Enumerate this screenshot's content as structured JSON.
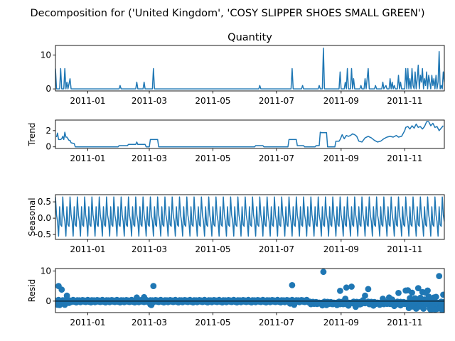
{
  "figure": {
    "suptitle": "Decomposition for ('United Kingdom', 'COSY SLIPPER SHOES SMALL GREEN')"
  },
  "chart_data": [
    {
      "type": "line",
      "title": "Quantity",
      "ylabel": "",
      "color": "#1f77b4",
      "xlim": [
        "2010-12-01",
        "2011-12-09"
      ],
      "ylim": [
        -0.6,
        12.8
      ],
      "yticks": [
        0,
        10
      ],
      "xticks": [
        "2011-01",
        "2011-03",
        "2011-05",
        "2011-07",
        "2011-09",
        "2011-11"
      ],
      "points": [
        [
          "2010-12-01",
          6
        ],
        [
          "2010-12-02",
          0
        ],
        [
          "2010-12-05",
          0
        ],
        [
          "2010-12-06",
          6
        ],
        [
          "2010-12-07",
          0
        ],
        [
          "2010-12-09",
          0
        ],
        [
          "2010-12-10",
          6
        ],
        [
          "2010-12-11",
          0
        ],
        [
          "2010-12-12",
          2
        ],
        [
          "2010-12-13",
          0
        ],
        [
          "2010-12-15",
          3
        ],
        [
          "2010-12-16",
          0
        ],
        [
          "2011-01-31",
          0
        ],
        [
          "2011-02-01",
          1
        ],
        [
          "2011-02-02",
          0
        ],
        [
          "2011-02-16",
          0
        ],
        [
          "2011-02-17",
          2
        ],
        [
          "2011-02-18",
          0
        ],
        [
          "2011-02-23",
          0
        ],
        [
          "2011-02-24",
          2
        ],
        [
          "2011-02-25",
          0
        ],
        [
          "2011-03-04",
          0
        ],
        [
          "2011-03-05",
          6
        ],
        [
          "2011-03-06",
          0
        ],
        [
          "2011-06-14",
          0
        ],
        [
          "2011-06-15",
          1
        ],
        [
          "2011-06-16",
          0
        ],
        [
          "2011-07-15",
          0
        ],
        [
          "2011-07-16",
          6
        ],
        [
          "2011-07-17",
          0
        ],
        [
          "2011-07-25",
          0
        ],
        [
          "2011-07-26",
          1
        ],
        [
          "2011-07-27",
          0
        ],
        [
          "2011-08-10",
          0
        ],
        [
          "2011-08-11",
          1
        ],
        [
          "2011-08-12",
          0
        ],
        [
          "2011-08-14",
          0
        ],
        [
          "2011-08-15",
          12
        ],
        [
          "2011-08-16",
          0
        ],
        [
          "2011-08-30",
          0
        ],
        [
          "2011-08-31",
          5
        ],
        [
          "2011-09-01",
          0
        ],
        [
          "2011-09-04",
          0
        ],
        [
          "2011-09-05",
          2
        ],
        [
          "2011-09-06",
          0
        ],
        [
          "2011-09-07",
          6
        ],
        [
          "2011-09-08",
          0
        ],
        [
          "2011-09-10",
          0
        ],
        [
          "2011-09-11",
          6
        ],
        [
          "2011-09-12",
          0
        ],
        [
          "2011-09-13",
          3
        ],
        [
          "2011-09-14",
          0
        ],
        [
          "2011-09-19",
          0
        ],
        [
          "2011-09-20",
          1
        ],
        [
          "2011-09-21",
          0
        ],
        [
          "2011-09-23",
          0
        ],
        [
          "2011-09-24",
          3
        ],
        [
          "2011-09-25",
          0
        ],
        [
          "2011-09-27",
          6
        ],
        [
          "2011-09-28",
          0
        ],
        [
          "2011-10-03",
          0
        ],
        [
          "2011-10-04",
          1
        ],
        [
          "2011-10-05",
          0
        ],
        [
          "2011-10-10",
          0
        ],
        [
          "2011-10-11",
          2
        ],
        [
          "2011-10-12",
          0
        ],
        [
          "2011-10-14",
          1
        ],
        [
          "2011-10-15",
          0
        ],
        [
          "2011-10-17",
          0
        ],
        [
          "2011-10-18",
          3
        ],
        [
          "2011-10-19",
          0
        ],
        [
          "2011-10-20",
          2
        ],
        [
          "2011-10-21",
          0
        ],
        [
          "2011-10-22",
          1
        ],
        [
          "2011-10-23",
          0
        ],
        [
          "2011-10-25",
          0
        ],
        [
          "2011-10-26",
          4
        ],
        [
          "2011-10-27",
          0
        ],
        [
          "2011-10-28",
          2
        ],
        [
          "2011-10-29",
          0
        ],
        [
          "2011-11-01",
          0
        ],
        [
          "2011-11-02",
          6
        ],
        [
          "2011-11-03",
          0
        ],
        [
          "2011-11-04",
          6
        ],
        [
          "2011-11-05",
          0
        ],
        [
          "2011-11-06",
          3
        ],
        [
          "2011-11-07",
          0
        ],
        [
          "2011-11-08",
          6
        ],
        [
          "2011-11-09",
          1
        ],
        [
          "2011-11-10",
          0
        ],
        [
          "2011-11-11",
          5
        ],
        [
          "2011-11-12",
          0
        ],
        [
          "2011-11-13",
          3
        ],
        [
          "2011-11-14",
          7
        ],
        [
          "2011-11-15",
          0
        ],
        [
          "2011-11-16",
          4
        ],
        [
          "2011-11-17",
          2
        ],
        [
          "2011-11-18",
          6
        ],
        [
          "2011-11-19",
          0
        ],
        [
          "2011-11-20",
          3
        ],
        [
          "2011-11-21",
          1
        ],
        [
          "2011-11-22",
          5
        ],
        [
          "2011-11-23",
          0
        ],
        [
          "2011-11-24",
          4
        ],
        [
          "2011-11-25",
          2
        ],
        [
          "2011-11-26",
          0
        ],
        [
          "2011-11-27",
          4
        ],
        [
          "2011-11-28",
          1
        ],
        [
          "2011-11-29",
          3
        ],
        [
          "2011-11-30",
          0
        ],
        [
          "2011-12-01",
          4
        ],
        [
          "2011-12-02",
          0
        ],
        [
          "2011-12-03",
          2
        ],
        [
          "2011-12-04",
          11
        ],
        [
          "2011-12-05",
          0
        ],
        [
          "2011-12-06",
          1
        ],
        [
          "2011-12-07",
          0
        ],
        [
          "2011-12-08",
          5
        ],
        [
          "2011-12-09",
          2
        ]
      ]
    },
    {
      "type": "line",
      "title": "",
      "ylabel": "Trend",
      "color": "#1f77b4",
      "xlim": [
        "2010-12-01",
        "2011-12-09"
      ],
      "ylim": [
        -0.2,
        3.3
      ],
      "yticks": [
        0,
        2
      ],
      "xticks": [
        "2011-01",
        "2011-03",
        "2011-05",
        "2011-07",
        "2011-09",
        "2011-11"
      ],
      "points": [
        [
          "2010-12-02",
          1.2
        ],
        [
          "2010-12-03",
          1.7
        ],
        [
          "2010-12-04",
          0.9
        ],
        [
          "2010-12-06",
          0.9
        ],
        [
          "2010-12-07",
          1.0
        ],
        [
          "2010-12-08",
          1.3
        ],
        [
          "2010-12-09",
          0.9
        ],
        [
          "2010-12-10",
          1.8
        ],
        [
          "2010-12-11",
          1.2
        ],
        [
          "2010-12-12",
          1.2
        ],
        [
          "2010-12-13",
          1.0
        ],
        [
          "2010-12-14",
          0.8
        ],
        [
          "2010-12-15",
          0.8
        ],
        [
          "2010-12-16",
          0.5
        ],
        [
          "2010-12-19",
          0.4
        ],
        [
          "2010-12-20",
          0.0
        ],
        [
          "2011-01-30",
          0.0
        ],
        [
          "2011-01-31",
          0.15
        ],
        [
          "2011-02-01",
          0.15
        ],
        [
          "2011-02-08",
          0.15
        ],
        [
          "2011-02-09",
          0.3
        ],
        [
          "2011-02-16",
          0.3
        ],
        [
          "2011-02-17",
          0.6
        ],
        [
          "2011-02-18",
          0.3
        ],
        [
          "2011-02-25",
          0.3
        ],
        [
          "2011-02-26",
          0.0
        ],
        [
          "2011-03-01",
          0.0
        ],
        [
          "2011-03-02",
          0.9
        ],
        [
          "2011-03-09",
          0.9
        ],
        [
          "2011-03-10",
          0.0
        ],
        [
          "2011-06-10",
          0.0
        ],
        [
          "2011-06-11",
          0.15
        ],
        [
          "2011-06-18",
          0.15
        ],
        [
          "2011-06-19",
          0.0
        ],
        [
          "2011-07-12",
          0.0
        ],
        [
          "2011-07-13",
          0.9
        ],
        [
          "2011-07-20",
          0.9
        ],
        [
          "2011-07-21",
          0.15
        ],
        [
          "2011-07-27",
          0.15
        ],
        [
          "2011-07-28",
          0.0
        ],
        [
          "2011-08-07",
          0.0
        ],
        [
          "2011-08-08",
          0.15
        ],
        [
          "2011-08-11",
          0.15
        ],
        [
          "2011-08-12",
          1.8
        ],
        [
          "2011-08-13",
          1.75
        ],
        [
          "2011-08-18",
          1.75
        ],
        [
          "2011-08-19",
          0.0
        ],
        [
          "2011-08-26",
          0.0
        ],
        [
          "2011-08-27",
          0.7
        ],
        [
          "2011-08-30",
          0.7
        ],
        [
          "2011-08-31",
          0.9
        ],
        [
          "2011-09-02",
          1.5
        ],
        [
          "2011-09-04",
          1.0
        ],
        [
          "2011-09-06",
          1.4
        ],
        [
          "2011-09-08",
          1.3
        ],
        [
          "2011-09-10",
          1.4
        ],
        [
          "2011-09-12",
          1.6
        ],
        [
          "2011-09-14",
          1.5
        ],
        [
          "2011-09-16",
          1.3
        ],
        [
          "2011-09-18",
          0.7
        ],
        [
          "2011-09-21",
          0.6
        ],
        [
          "2011-09-24",
          1.1
        ],
        [
          "2011-09-27",
          1.3
        ],
        [
          "2011-09-30",
          1.1
        ],
        [
          "2011-10-03",
          0.8
        ],
        [
          "2011-10-06",
          0.6
        ],
        [
          "2011-10-09",
          0.7
        ],
        [
          "2011-10-12",
          1.0
        ],
        [
          "2011-10-15",
          1.2
        ],
        [
          "2011-10-18",
          1.3
        ],
        [
          "2011-10-21",
          1.2
        ],
        [
          "2011-10-24",
          1.4
        ],
        [
          "2011-10-26",
          1.2
        ],
        [
          "2011-10-29",
          1.3
        ],
        [
          "2011-11-01",
          2.0
        ],
        [
          "2011-11-02",
          2.4
        ],
        [
          "2011-11-04",
          2.5
        ],
        [
          "2011-11-06",
          2.2
        ],
        [
          "2011-11-08",
          2.6
        ],
        [
          "2011-11-10",
          2.3
        ],
        [
          "2011-11-12",
          2.8
        ],
        [
          "2011-11-14",
          2.4
        ],
        [
          "2011-11-16",
          2.5
        ],
        [
          "2011-11-18",
          2.2
        ],
        [
          "2011-11-20",
          2.5
        ],
        [
          "2011-11-22",
          3.1
        ],
        [
          "2011-11-24",
          3.1
        ],
        [
          "2011-11-26",
          2.6
        ],
        [
          "2011-11-28",
          2.9
        ],
        [
          "2011-11-30",
          2.4
        ],
        [
          "2011-12-02",
          2.5
        ],
        [
          "2011-12-04",
          2.0
        ],
        [
          "2011-12-06",
          2.3
        ],
        [
          "2011-12-08",
          2.6
        ]
      ]
    },
    {
      "type": "line",
      "title": "",
      "ylabel": "Seasonal",
      "color": "#1f77b4",
      "xlim": [
        "2010-12-01",
        "2011-12-09"
      ],
      "ylim": [
        -0.65,
        0.72
      ],
      "yticks": [
        -0.5,
        0.0,
        0.5
      ],
      "xticks": [
        "2011-01",
        "2011-03",
        "2011-05",
        "2011-07",
        "2011-09",
        "2011-11"
      ],
      "period_days": 7,
      "start": "2010-12-01",
      "end": "2011-12-09",
      "weekly_pattern": [
        0.65,
        0.1,
        -0.1,
        -0.55,
        0.35,
        -0.2,
        -0.25
      ]
    },
    {
      "type": "scatter",
      "title": "",
      "ylabel": "Resid",
      "color": "#1f77b4",
      "xlim": [
        "2010-12-01",
        "2011-12-09"
      ],
      "ylim": [
        -3.8,
        10.8
      ],
      "yticks": [
        0,
        10
      ],
      "xticks": [
        "2011-01",
        "2011-03",
        "2011-05",
        "2011-07",
        "2011-09",
        "2011-11"
      ],
      "baseline": 0,
      "base_pattern": [
        0.2,
        -0.3,
        0.1,
        0.4,
        -0.2,
        0.0,
        -0.4,
        0.3,
        -0.1,
        0.25,
        -0.35,
        0.05,
        0.35,
        -0.15
      ],
      "baseline_dense_end": "2011-07-31",
      "notable_points": [
        [
          "2010-12-03",
          -1.2
        ],
        [
          "2010-12-04",
          5.0
        ],
        [
          "2010-12-05",
          -1.3
        ],
        [
          "2010-12-07",
          3.8
        ],
        [
          "2010-12-09",
          -0.5
        ],
        [
          "2010-12-10",
          -1.2
        ],
        [
          "2010-12-12",
          1.8
        ],
        [
          "2010-12-14",
          -0.6
        ],
        [
          "2011-02-17",
          1.2
        ],
        [
          "2011-02-24",
          1.3
        ],
        [
          "2011-03-02",
          -1.1
        ],
        [
          "2011-03-03",
          -1.3
        ],
        [
          "2011-03-05",
          5.0
        ],
        [
          "2011-07-14",
          -0.8
        ],
        [
          "2011-07-16",
          5.3
        ],
        [
          "2011-07-18",
          -1.2
        ],
        [
          "2011-08-11",
          -0.7
        ],
        [
          "2011-08-14",
          -1.4
        ],
        [
          "2011-08-15",
          9.7
        ],
        [
          "2011-08-18",
          -1.3
        ],
        [
          "2011-08-20",
          -0.9
        ],
        [
          "2011-08-24",
          -1.0
        ],
        [
          "2011-08-28",
          -1.3
        ],
        [
          "2011-08-31",
          3.4
        ],
        [
          "2011-09-03",
          -1.0
        ],
        [
          "2011-09-05",
          0.8
        ],
        [
          "2011-09-06",
          4.5
        ],
        [
          "2011-09-08",
          -1.5
        ],
        [
          "2011-09-11",
          4.8
        ],
        [
          "2011-09-13",
          -0.8
        ],
        [
          "2011-09-15",
          -1.9
        ],
        [
          "2011-09-19",
          -1.1
        ],
        [
          "2011-09-22",
          0.3
        ],
        [
          "2011-09-24",
          1.8
        ],
        [
          "2011-09-27",
          4.0
        ],
        [
          "2011-09-29",
          -1.0
        ],
        [
          "2011-10-02",
          -1.5
        ],
        [
          "2011-10-05",
          -0.7
        ],
        [
          "2011-10-08",
          -1.2
        ],
        [
          "2011-10-11",
          0.8
        ],
        [
          "2011-10-14",
          -0.5
        ],
        [
          "2011-10-17",
          1.2
        ],
        [
          "2011-10-20",
          0.5
        ],
        [
          "2011-10-22",
          -1.6
        ],
        [
          "2011-10-25",
          -0.9
        ],
        [
          "2011-10-26",
          2.7
        ],
        [
          "2011-10-28",
          -1.4
        ],
        [
          "2011-10-30",
          -0.6
        ],
        [
          "2011-11-02",
          3.5
        ],
        [
          "2011-11-04",
          3.6
        ],
        [
          "2011-11-05",
          -2.3
        ],
        [
          "2011-11-06",
          1.0
        ],
        [
          "2011-11-08",
          2.8
        ],
        [
          "2011-11-09",
          -1.8
        ],
        [
          "2011-11-11",
          0.9
        ],
        [
          "2011-11-12",
          -2.5
        ],
        [
          "2011-11-14",
          4.3
        ],
        [
          "2011-11-15",
          -1.8
        ],
        [
          "2011-11-16",
          1.1
        ],
        [
          "2011-11-18",
          3.0
        ],
        [
          "2011-11-19",
          -2.5
        ],
        [
          "2011-11-20",
          0.5
        ],
        [
          "2011-11-21",
          2.8
        ],
        [
          "2011-11-22",
          -1.0
        ],
        [
          "2011-11-23",
          3.5
        ],
        [
          "2011-11-24",
          1.5
        ],
        [
          "2011-11-25",
          -2.4
        ],
        [
          "2011-11-26",
          -2.9
        ],
        [
          "2011-11-27",
          0.8
        ],
        [
          "2011-11-28",
          -1.6
        ],
        [
          "2011-11-29",
          1.2
        ],
        [
          "2011-11-30",
          -2.8
        ],
        [
          "2011-12-01",
          1.4
        ],
        [
          "2011-12-02",
          -2.6
        ],
        [
          "2011-12-03",
          -0.6
        ],
        [
          "2011-12-04",
          8.3
        ],
        [
          "2011-12-05",
          -2.2
        ],
        [
          "2011-12-06",
          -1.2
        ],
        [
          "2011-12-07",
          -3.0
        ],
        [
          "2011-12-08",
          2.1
        ],
        [
          "2011-12-09",
          -2.8
        ]
      ]
    }
  ]
}
